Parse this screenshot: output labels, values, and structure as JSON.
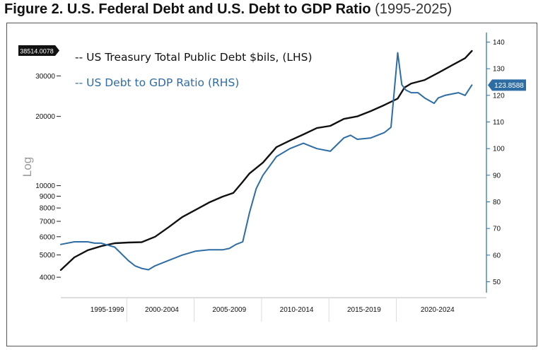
{
  "figure": {
    "title": "Figure 2. U.S. Federal Debt and U.S. Debt to GDP Ratio",
    "date_range": "(1995-2025)"
  },
  "chart_data": {
    "type": "line",
    "title": "Figure 2. U.S. Federal Debt and U.S. Debt to GDP Ratio (1995-2025)",
    "left_axis": {
      "label": "Log",
      "scale": "log",
      "range": [
        3600,
        38514
      ],
      "ticks": [
        4000,
        5000,
        6000,
        7000,
        8000,
        9000,
        10000,
        20000,
        30000
      ],
      "tick_labels": [
        "4000",
        "5000",
        "6000",
        "7000",
        "8000",
        "9000",
        "10000",
        "20000",
        "30000"
      ],
      "last_value_label": "38514.0078",
      "last_value": 38514.0078
    },
    "right_axis": {
      "scale": "linear",
      "range": [
        48,
        142
      ],
      "ticks": [
        50,
        60,
        70,
        80,
        90,
        100,
        110,
        120,
        130,
        140
      ],
      "tick_labels": [
        "50",
        "60",
        "70",
        "80",
        "90",
        "100",
        "110",
        "120",
        "130",
        "140"
      ],
      "last_value_label": "123.8588",
      "last_value": 123.8588
    },
    "x_axis": {
      "range": [
        1995.0,
        2025.9
      ],
      "categories": [
        "1995-1999",
        "2000-2004",
        "2005-2009",
        "2010-2014",
        "2015-2019",
        "2020-2024"
      ]
    },
    "legend": {
      "placement": "top-left",
      "items": [
        {
          "label": "-- US Treasury Total Public Debt $bils, (LHS)",
          "color": "#111111"
        },
        {
          "label": "-- US Debt to GDP Ratio (RHS)",
          "color": "#2E6DA4"
        }
      ]
    },
    "grid": false,
    "series": [
      {
        "name": "US Treasury Total Public Debt $bils",
        "axis": "left",
        "color": "#111111",
        "x": [
          1995.0,
          1996.0,
          1997.0,
          1998.0,
          1999.0,
          2000.0,
          2001.0,
          2002.0,
          2003.0,
          2004.0,
          2005.0,
          2006.0,
          2007.0,
          2007.8,
          2008.5,
          2009.0,
          2010.0,
          2011.0,
          2012.0,
          2013.0,
          2014.0,
          2015.0,
          2016.0,
          2017.0,
          2018.0,
          2019.0,
          2020.0,
          2020.5,
          2021.0,
          2022.0,
          2023.0,
          2024.0,
          2025.0,
          2025.5
        ],
        "y": [
          4300,
          4880,
          5240,
          5460,
          5620,
          5660,
          5680,
          6000,
          6600,
          7300,
          7850,
          8450,
          8960,
          9300,
          10400,
          11300,
          12600,
          14700,
          15700,
          16700,
          17800,
          18200,
          19500,
          20000,
          21100,
          22400,
          23900,
          26700,
          27800,
          28800,
          30900,
          33300,
          35800,
          38514
        ]
      },
      {
        "name": "US Debt to GDP Ratio",
        "axis": "right",
        "color": "#2E6DA4",
        "x": [
          1995.0,
          1996.0,
          1997.0,
          1997.5,
          1998.0,
          1999.0,
          2000.0,
          2000.5,
          2001.0,
          2001.5,
          2002.0,
          2003.0,
          2004.0,
          2005.0,
          2006.0,
          2007.0,
          2007.5,
          2008.0,
          2008.5,
          2009.0,
          2009.5,
          2010.0,
          2011.0,
          2012.0,
          2013.0,
          2013.5,
          2014.0,
          2015.0,
          2016.0,
          2016.5,
          2017.0,
          2018.0,
          2018.5,
          2019.0,
          2019.5,
          2020.0,
          2020.3,
          2020.6,
          2021.0,
          2021.5,
          2022.0,
          2022.7,
          2023.0,
          2023.5,
          2024.0,
          2024.5,
          2025.0,
          2025.5
        ],
        "y": [
          64,
          65,
          65,
          64.5,
          64.5,
          63,
          58,
          56,
          55,
          54.5,
          56,
          58,
          60,
          61.5,
          62,
          62,
          62.5,
          64,
          65,
          76,
          85,
          90,
          97,
          100,
          102,
          101,
          100,
          99,
          104,
          105,
          103.5,
          104,
          105,
          106,
          108,
          136,
          124,
          122,
          121,
          121,
          119,
          117,
          119,
          120,
          120.5,
          121,
          120,
          123.8588
        ]
      }
    ]
  }
}
